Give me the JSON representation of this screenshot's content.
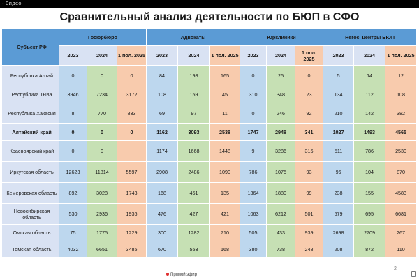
{
  "video_bar": {
    "title": "- Видео"
  },
  "slide": {
    "title": "Сравнительный анализ деятельности по БЮП в СФО",
    "page_number": "2"
  },
  "footer": {
    "live_label": "Прямой эфир"
  },
  "table": {
    "subject_header": "Субъект РФ",
    "groups": [
      "Госюрбюро",
      "Адвокаты",
      "Юрклиники",
      "Негос. центры БЮП"
    ],
    "years": [
      "2023",
      "2024",
      "1 пол. 2025"
    ],
    "rows": [
      {
        "subject": "Республика Алтай",
        "values": [
          "0",
          "0",
          "0",
          "84",
          "198",
          "165",
          "0",
          "25",
          "0",
          "5",
          "14",
          "12"
        ],
        "bold": false
      },
      {
        "subject": "Республика Тыва",
        "values": [
          "3946",
          "7234",
          "3172",
          "108",
          "159",
          "45",
          "310",
          "348",
          "23",
          "134",
          "112",
          "108"
        ],
        "bold": false
      },
      {
        "subject": "Республика Хакасия",
        "values": [
          "8",
          "770",
          "833",
          "69",
          "97",
          "11",
          "0",
          "246",
          "92",
          "210",
          "142",
          "382"
        ],
        "bold": false
      },
      {
        "subject": "Алтайский край",
        "values": [
          "0",
          "0",
          "0",
          "1162",
          "3093",
          "2538",
          "1747",
          "2948",
          "341",
          "1027",
          "1493",
          "4565"
        ],
        "bold": true
      },
      {
        "subject": "Красноярский край",
        "values": [
          "0",
          "0",
          "",
          "1174",
          "1668",
          "1448",
          "9",
          "3286",
          "316",
          "511",
          "786",
          "2530"
        ],
        "bold": false
      },
      {
        "subject": "Иркутская область",
        "values": [
          "12623",
          "11814",
          "5597",
          "2908",
          "2486",
          "1090",
          "786",
          "1075",
          "93",
          "96",
          "104",
          "870"
        ],
        "bold": false
      },
      {
        "subject": "Кемеровская область",
        "values": [
          "892",
          "3028",
          "1743",
          "168",
          "451",
          "135",
          "1364",
          "1880",
          "99",
          "238",
          "155",
          "4583"
        ],
        "bold": false
      },
      {
        "subject": "Новосибирская область",
        "values": [
          "530",
          "2936",
          "1936",
          "476",
          "427",
          "421",
          "1063",
          "6212",
          "501",
          "579",
          "695",
          "6681"
        ],
        "bold": false
      },
      {
        "subject": "Омская область",
        "values": [
          "75",
          "1775",
          "1229",
          "300",
          "1282",
          "710",
          "505",
          "433",
          "939",
          "2698",
          "2709",
          "267"
        ],
        "bold": false
      },
      {
        "subject": "Томская область",
        "values": [
          "4032",
          "6651",
          "3485",
          "670",
          "553",
          "168",
          "380",
          "738",
          "248",
          "208",
          "872",
          "110"
        ],
        "bold": false
      }
    ]
  },
  "colors": {
    "header_blue": "#5b9bd5",
    "cell_blue": "#bdd7ee",
    "cell_green": "#c6e0b4",
    "cell_peach": "#f8cbad",
    "subject_bg": "#d9e2f3"
  }
}
